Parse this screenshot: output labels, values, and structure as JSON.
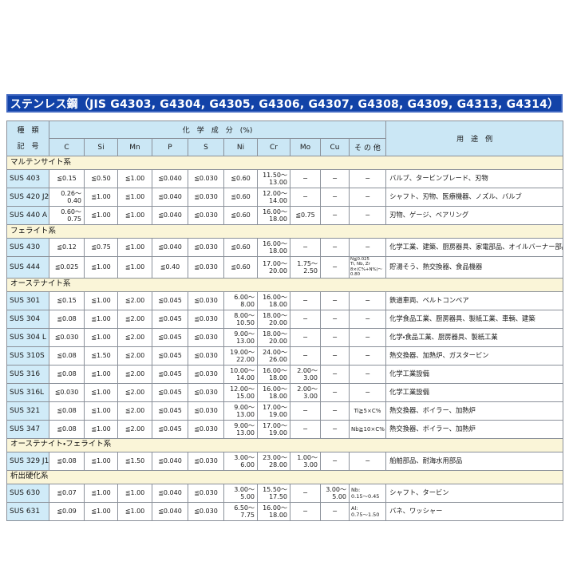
{
  "title": "ステンレス鋼（JIS G4303, G4304, G4305, G4306, G4307, G4308, G4309, G4313, G4314）",
  "colors": {
    "title_bg": "#1243a8",
    "title_border": "#3f66c0",
    "header_bg": "#cbe7f5",
    "section_bg": "#faf5d8",
    "grade_bg": "#d0ebf8",
    "grid_border": "#8a9099"
  },
  "table": {
    "header": {
      "type_line1": "種　類",
      "type_line2": "記　号",
      "composition": "化　学　成　分　(%)",
      "usage": "用　途　例",
      "elements": [
        "C",
        "Si",
        "Mn",
        "P",
        "S",
        "Ni",
        "Cr",
        "Mo",
        "Cu",
        "そ の 他"
      ]
    },
    "sections": [
      {
        "name": "マルテンサイト系",
        "rows": [
          {
            "grade": "SUS 403",
            "cells": [
              "≦0.15",
              "≦0.50",
              "≦1.00",
              "≦0.040",
              "≦0.030",
              "≦0.60",
              "11.50～\n13.00",
              "−",
              "−",
              "−"
            ],
            "usage": "バルブ、タービンブレード、刃物"
          },
          {
            "grade": "SUS 420 J2",
            "cells": [
              "0.26～\n0.40",
              "≦1.00",
              "≦1.00",
              "≦0.040",
              "≦0.030",
              "≦0.60",
              "12.00～\n14.00",
              "−",
              "−",
              "−"
            ],
            "usage": "シャフト、刃物、医療機器、ノズル、バルブ"
          },
          {
            "grade": "SUS 440 A",
            "cells": [
              "0.60～\n0.75",
              "≦1.00",
              "≦1.00",
              "≦0.040",
              "≦0.030",
              "≦0.60",
              "16.00～\n18.00",
              "≦0.75",
              "−",
              "−"
            ],
            "usage": "刃物、ゲージ、ベアリング"
          }
        ]
      },
      {
        "name": "フェライト系",
        "rows": [
          {
            "grade": "SUS 430",
            "cells": [
              "≦0.12",
              "≦0.75",
              "≦1.00",
              "≦0.040",
              "≦0.030",
              "≦0.60",
              "16.00～\n18.00",
              "−",
              "−",
              "−"
            ],
            "usage": "化学工業、建築、厨房器具、家電部品、オイルバーナー部品"
          },
          {
            "grade": "SUS 444",
            "cells": [
              "≦0.025",
              "≦1.00",
              "≦1.00",
              "≦0.40",
              "≦0.030",
              "≦0.60",
              "17.00～\n20.00",
              "1.75～\n2.50",
              "−",
              "N≦0.025\nTi, Nb, Zr\n8×(C%+N%)～0.80"
            ],
            "usage": "貯湯そう、熱交換器、食品機器"
          }
        ]
      },
      {
        "name": "オーステナイト系",
        "rows": [
          {
            "grade": "SUS 301",
            "cells": [
              "≦0.15",
              "≦1.00",
              "≦2.00",
              "≦0.045",
              "≦0.030",
              "6.00～\n8.00",
              "16.00～\n18.00",
              "−",
              "−",
              "−"
            ],
            "usage": "鉄道車両、ベルトコンベア"
          },
          {
            "grade": "SUS 304",
            "cells": [
              "≦0.08",
              "≦1.00",
              "≦2.00",
              "≦0.045",
              "≦0.030",
              "8.00～\n10.50",
              "18.00～\n20.00",
              "−",
              "−",
              "−"
            ],
            "usage": "化学食品工業、厨房器具、製紙工業、車輌、建築"
          },
          {
            "grade": "SUS 304 L",
            "cells": [
              "≦0.030",
              "≦1.00",
              "≦2.00",
              "≦0.045",
              "≦0.030",
              "9.00～\n13.00",
              "18.00～\n20.00",
              "−",
              "−",
              "−"
            ],
            "usage": "化学・食品工業、厨房器具、製紙工業"
          },
          {
            "grade": "SUS 310S",
            "cells": [
              "≦0.08",
              "≦1.50",
              "≦2.00",
              "≦0.045",
              "≦0.030",
              "19.00～\n22.00",
              "24.00～\n26.00",
              "−",
              "−",
              "−"
            ],
            "usage": "熱交換器、加熱炉、ガスタービン"
          },
          {
            "grade": "SUS 316",
            "cells": [
              "≦0.08",
              "≦1.00",
              "≦2.00",
              "≦0.045",
              "≦0.030",
              "10.00～\n14.00",
              "16.00～\n18.00",
              "2.00～\n3.00",
              "−",
              "−"
            ],
            "usage": "化学工業設備"
          },
          {
            "grade": "SUS 316L",
            "cells": [
              "≦0.030",
              "≦1.00",
              "≦2.00",
              "≦0.045",
              "≦0.030",
              "12.00～\n15.00",
              "16.00～\n18.00",
              "2.00～\n3.00",
              "−",
              "−"
            ],
            "usage": "化学工業設備"
          },
          {
            "grade": "SUS 321",
            "cells": [
              "≦0.08",
              "≦1.00",
              "≦2.00",
              "≦0.045",
              "≦0.030",
              "9.00～\n13.00",
              "17.00～\n19.00",
              "−",
              "−",
              "Ti≧5×C%"
            ],
            "usage": "熱交換器、ボイラー、加熱炉"
          },
          {
            "grade": "SUS 347",
            "cells": [
              "≦0.08",
              "≦1.00",
              "≦2.00",
              "≦0.045",
              "≦0.030",
              "9.00～\n13.00",
              "17.00～\n19.00",
              "−",
              "−",
              "Nb≧10×C%"
            ],
            "usage": "熱交換器、ボイラー、加熱炉"
          }
        ]
      },
      {
        "name": "オーステナイト・フェライト系",
        "rows": [
          {
            "grade": "SUS 329 J1",
            "cells": [
              "≦0.08",
              "≦1.00",
              "≦1.50",
              "≦0.040",
              "≦0.030",
              "3.00～\n6.00",
              "23.00～\n28.00",
              "1.00～\n3.00",
              "−",
              "−"
            ],
            "usage": "船舶部品、耐海水用部品"
          }
        ]
      },
      {
        "name": "析出硬化系",
        "rows": [
          {
            "grade": "SUS 630",
            "cells": [
              "≦0.07",
              "≦1.00",
              "≦1.00",
              "≦0.040",
              "≦0.030",
              "3.00～\n5.00",
              "15.50～\n17.50",
              "−",
              "3.00～\n5.00",
              "Nb:\n0.15～0.45"
            ],
            "usage": "シャフト、タービン"
          },
          {
            "grade": "SUS 631",
            "cells": [
              "≦0.09",
              "≦1.00",
              "≦1.00",
              "≦0.040",
              "≦0.030",
              "6.50～\n7.75",
              "16.00～\n18.00",
              "−",
              "−",
              "Al:\n0.75～1.50"
            ],
            "usage": "バネ、ワッシャー"
          }
        ]
      }
    ]
  }
}
